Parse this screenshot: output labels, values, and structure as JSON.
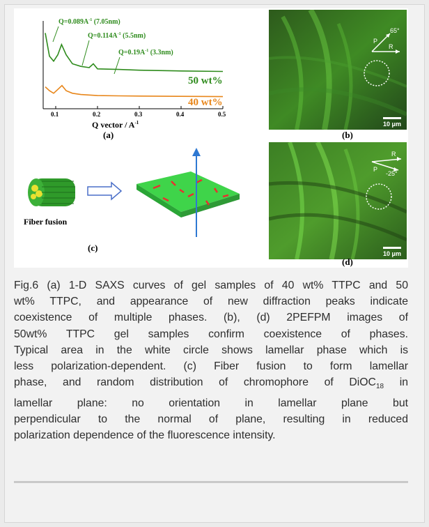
{
  "saxs": {
    "axis_title": "Q vector / A",
    "axis_superscript": "-1",
    "ticks": [
      "0.1",
      "0.2",
      "0.3",
      "0.4",
      "0.5"
    ],
    "peaks": [
      {
        "label": "Q=0.089A",
        "sup": "-1",
        "rest": " (7.05nm)"
      },
      {
        "label": "Q=0.114A",
        "sup": "-1",
        "rest": " (5.5nm)"
      },
      {
        "label": "Q=0.19A",
        "sup": "-1",
        "rest": " (3.3nm)"
      }
    ],
    "series_labels": [
      "50 wt%",
      "40 wt%"
    ],
    "colors": {
      "50": "#2e8b1c",
      "40": "#e8861a"
    }
  },
  "chart_data": {
    "type": "line",
    "xlabel": "Q vector / A-1",
    "xlim": [
      0.07,
      0.5
    ],
    "series": [
      {
        "name": "50 wt%",
        "x": [
          0.075,
          0.085,
          0.095,
          0.105,
          0.114,
          0.125,
          0.14,
          0.16,
          0.18,
          0.19,
          0.2,
          0.25,
          0.3,
          0.4,
          0.5
        ],
        "y": [
          3.4,
          2.5,
          2.3,
          2.55,
          2.95,
          2.55,
          2.2,
          2.1,
          2.05,
          2.2,
          2.0,
          1.98,
          1.95,
          1.92,
          1.9
        ]
      },
      {
        "name": "40 wt%",
        "x": [
          0.075,
          0.085,
          0.095,
          0.105,
          0.115,
          0.125,
          0.14,
          0.16,
          0.18,
          0.2,
          0.25,
          0.3,
          0.4,
          0.5
        ],
        "y": [
          1.3,
          1.15,
          1.05,
          1.2,
          1.35,
          1.15,
          1.05,
          1.0,
          0.98,
          0.96,
          0.95,
          0.94,
          0.93,
          0.92
        ]
      }
    ]
  },
  "panels": {
    "a": "(a)",
    "b": "(b)",
    "c": "(c)",
    "d": "(d)"
  },
  "micro_b": {
    "angle": "65°",
    "p": "P",
    "r": "R",
    "scale": "10 μm"
  },
  "micro_d": {
    "angle": "-25°",
    "p": "P",
    "r": "R",
    "scale": "10 μm"
  },
  "schematic": {
    "label": "Fiber fusion"
  },
  "caption": {
    "l1": "Fig.6 (a) 1-D SAXS curves of gel samples of 40 wt% TTPC and 50",
    "l2": "wt% TTPC, and appearance of new diffraction peaks indicate",
    "l3": "coexistence of multiple phases.  (b), (d) 2PEFPM images of",
    "l4": "50wt% TTPC gel samples confirm coexistence of phases.",
    "l5": "Typical area in the white circle shows lamellar phase which is",
    "l6": "less polarization-dependent. (c) Fiber fusion to form lamellar",
    "l7a": "phase, and random distribution of chromophore of DiOC",
    "l7sub": "18",
    "l7b": " in",
    "l8": "lamellar plane: no orientation in lamellar plane but",
    "l9": "perpendicular to the normal of plane, resulting in reduced",
    "l10": "polarization dependence of the fluorescence intensity."
  }
}
